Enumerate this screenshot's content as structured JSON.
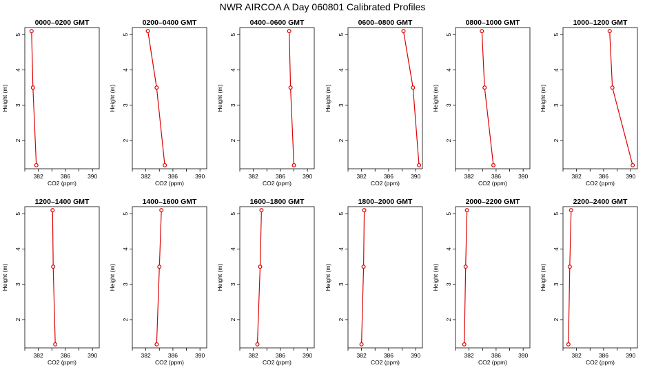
{
  "title": "NWR AIRCOA A  Day 060801  Calibrated Profiles",
  "colors": {
    "series": "#dd0000",
    "axis": "#000000"
  },
  "chart_data": [
    {
      "type": "line",
      "title": "0000–0200 GMT",
      "xlabel": "CO2 (ppm)",
      "ylabel": "Height (m)",
      "xlim": [
        380,
        391
      ],
      "ylim": [
        1.2,
        5.2
      ],
      "xticks": [
        382,
        386,
        390
      ],
      "yticks": [
        2,
        3,
        4,
        5
      ],
      "grid": false,
      "x": [
        381.0,
        381.2,
        381.7
      ],
      "y": [
        5.1,
        3.5,
        1.3
      ]
    },
    {
      "type": "line",
      "title": "0200–0400 GMT",
      "xlabel": "CO2 (ppm)",
      "ylabel": "Height (m)",
      "xlim": [
        380,
        391
      ],
      "ylim": [
        1.2,
        5.2
      ],
      "xticks": [
        382,
        386,
        390
      ],
      "yticks": [
        2,
        3,
        4,
        5
      ],
      "grid": false,
      "x": [
        382.3,
        383.6,
        384.8
      ],
      "y": [
        5.1,
        3.5,
        1.3
      ]
    },
    {
      "type": "line",
      "title": "0400–0600 GMT",
      "xlabel": "CO2 (ppm)",
      "ylabel": "Height (m)",
      "xlim": [
        380,
        391
      ],
      "ylim": [
        1.2,
        5.2
      ],
      "xticks": [
        382,
        386,
        390
      ],
      "yticks": [
        2,
        3,
        4,
        5
      ],
      "grid": false,
      "x": [
        387.3,
        387.5,
        388.0
      ],
      "y": [
        5.1,
        3.5,
        1.3
      ]
    },
    {
      "type": "line",
      "title": "0600–0800 GMT",
      "xlabel": "CO2 (ppm)",
      "ylabel": "Height (m)",
      "xlim": [
        380,
        391
      ],
      "ylim": [
        1.2,
        5.2
      ],
      "xticks": [
        382,
        386,
        390
      ],
      "yticks": [
        2,
        3,
        4,
        5
      ],
      "grid": false,
      "x": [
        388.2,
        389.6,
        390.5
      ],
      "y": [
        5.1,
        3.5,
        1.3
      ]
    },
    {
      "type": "line",
      "title": "0800–1000 GMT",
      "xlabel": "CO2 (ppm)",
      "ylabel": "Height (m)",
      "xlim": [
        380,
        391
      ],
      "ylim": [
        1.2,
        5.2
      ],
      "xticks": [
        382,
        386,
        390
      ],
      "yticks": [
        2,
        3,
        4,
        5
      ],
      "grid": false,
      "x": [
        383.9,
        384.3,
        385.6
      ],
      "y": [
        5.1,
        3.5,
        1.3
      ]
    },
    {
      "type": "line",
      "title": "1000–1200 GMT",
      "xlabel": "CO2 (ppm)",
      "ylabel": "Height (m)",
      "xlim": [
        380,
        391
      ],
      "ylim": [
        1.2,
        5.2
      ],
      "xticks": [
        382,
        386,
        390
      ],
      "yticks": [
        2,
        3,
        4,
        5
      ],
      "grid": false,
      "x": [
        386.9,
        387.3,
        390.3
      ],
      "y": [
        5.1,
        3.5,
        1.3
      ]
    },
    {
      "type": "line",
      "title": "1200–1400 GMT",
      "xlabel": "CO2 (ppm)",
      "ylabel": "Height (m)",
      "xlim": [
        380,
        391
      ],
      "ylim": [
        1.2,
        5.2
      ],
      "xticks": [
        382,
        386,
        390
      ],
      "yticks": [
        2,
        3,
        4,
        5
      ],
      "grid": false,
      "x": [
        384.1,
        384.2,
        384.5
      ],
      "y": [
        5.1,
        3.5,
        1.3
      ]
    },
    {
      "type": "line",
      "title": "1400–1600 GMT",
      "xlabel": "CO2 (ppm)",
      "ylabel": "Height (m)",
      "xlim": [
        380,
        391
      ],
      "ylim": [
        1.2,
        5.2
      ],
      "xticks": [
        382,
        386,
        390
      ],
      "yticks": [
        2,
        3,
        4,
        5
      ],
      "grid": false,
      "x": [
        384.3,
        384.0,
        383.6
      ],
      "y": [
        5.1,
        3.5,
        1.3
      ]
    },
    {
      "type": "line",
      "title": "1600–1800 GMT",
      "xlabel": "CO2 (ppm)",
      "ylabel": "Height (m)",
      "xlim": [
        380,
        391
      ],
      "ylim": [
        1.2,
        5.2
      ],
      "xticks": [
        382,
        386,
        390
      ],
      "yticks": [
        2,
        3,
        4,
        5
      ],
      "grid": false,
      "x": [
        383.2,
        383.0,
        382.6
      ],
      "y": [
        5.1,
        3.5,
        1.3
      ]
    },
    {
      "type": "line",
      "title": "1800–2000 GMT",
      "xlabel": "CO2 (ppm)",
      "ylabel": "Height (m)",
      "xlim": [
        380,
        391
      ],
      "ylim": [
        1.2,
        5.2
      ],
      "xticks": [
        382,
        386,
        390
      ],
      "yticks": [
        2,
        3,
        4,
        5
      ],
      "grid": false,
      "x": [
        382.4,
        382.3,
        382.0
      ],
      "y": [
        5.1,
        3.5,
        1.3
      ]
    },
    {
      "type": "line",
      "title": "2000–2200 GMT",
      "xlabel": "CO2 (ppm)",
      "ylabel": "Height (m)",
      "xlim": [
        380,
        391
      ],
      "ylim": [
        1.2,
        5.2
      ],
      "xticks": [
        382,
        386,
        390
      ],
      "yticks": [
        2,
        3,
        4,
        5
      ],
      "grid": false,
      "x": [
        381.7,
        381.5,
        381.3
      ],
      "y": [
        5.1,
        3.5,
        1.3
      ]
    },
    {
      "type": "line",
      "title": "2200–2400 GMT",
      "xlabel": "CO2 (ppm)",
      "ylabel": "Height (m)",
      "xlim": [
        380,
        391
      ],
      "ylim": [
        1.2,
        5.2
      ],
      "xticks": [
        382,
        386,
        390
      ],
      "yticks": [
        2,
        3,
        4,
        5
      ],
      "grid": false,
      "x": [
        381.2,
        381.0,
        380.8
      ],
      "y": [
        5.1,
        3.5,
        1.3
      ]
    }
  ]
}
